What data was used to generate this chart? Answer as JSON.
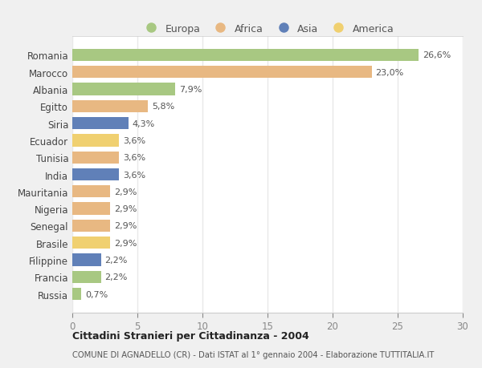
{
  "countries": [
    "Romania",
    "Marocco",
    "Albania",
    "Egitto",
    "Siria",
    "Ecuador",
    "Tunisia",
    "India",
    "Mauritania",
    "Nigeria",
    "Senegal",
    "Brasile",
    "Filippine",
    "Francia",
    "Russia"
  ],
  "values": [
    26.6,
    23.0,
    7.9,
    5.8,
    4.3,
    3.6,
    3.6,
    3.6,
    2.9,
    2.9,
    2.9,
    2.9,
    2.2,
    2.2,
    0.7
  ],
  "labels": [
    "26,6%",
    "23,0%",
    "7,9%",
    "5,8%",
    "4,3%",
    "3,6%",
    "3,6%",
    "3,6%",
    "2,9%",
    "2,9%",
    "2,9%",
    "2,9%",
    "2,2%",
    "2,2%",
    "0,7%"
  ],
  "colors": [
    "#a8c882",
    "#e8b882",
    "#a8c882",
    "#e8b882",
    "#6080b8",
    "#f0d070",
    "#e8b882",
    "#6080b8",
    "#e8b882",
    "#e8b882",
    "#e8b882",
    "#f0d070",
    "#6080b8",
    "#a8c882",
    "#a8c882"
  ],
  "legend_labels": [
    "Europa",
    "Africa",
    "Asia",
    "America"
  ],
  "legend_colors": [
    "#a8c882",
    "#e8b882",
    "#6080b8",
    "#f0d070"
  ],
  "title1": "Cittadini Stranieri per Cittadinanza - 2004",
  "title2": "COMUNE DI AGNADELLO (CR) - Dati ISTAT al 1° gennaio 2004 - Elaborazione TUTTITALIA.IT",
  "xlim": [
    0,
    30
  ],
  "xticks": [
    0,
    5,
    10,
    15,
    20,
    25,
    30
  ],
  "fig_bg": "#f0f0f0",
  "plot_bg": "#ffffff",
  "grid_color": "#e8e8e8"
}
